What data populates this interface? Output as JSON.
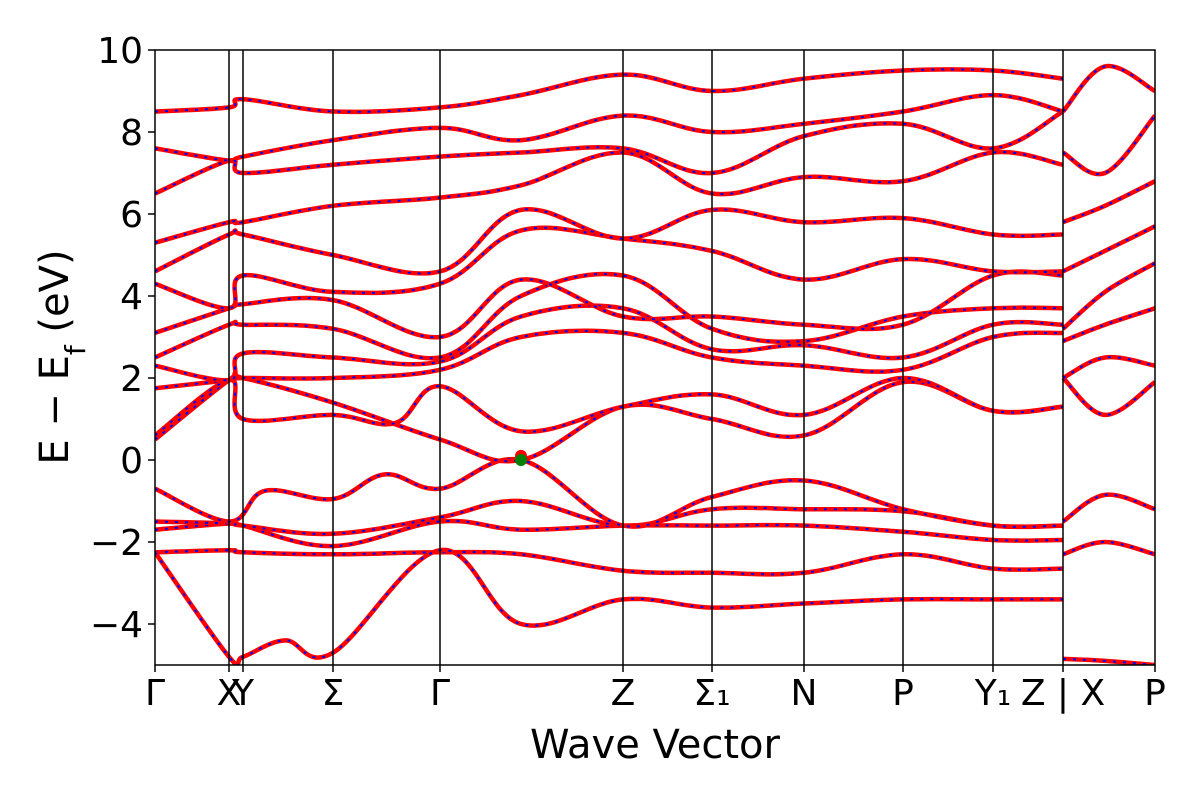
{
  "chart_data": {
    "type": "line",
    "title": "",
    "xlabel": "Wave Vector",
    "ylabel": "E − E_f (eV)",
    "ylabel_parts": [
      "E − E",
      "f",
      " (eV)"
    ],
    "ylim": [
      -5,
      10
    ],
    "xlim": [
      0,
      10
    ],
    "grid": false,
    "legend": "none",
    "y_ticks": [
      -4,
      -2,
      0,
      2,
      4,
      6,
      8,
      10
    ],
    "y_tick_labels": [
      "−4",
      "−2",
      "0",
      "2",
      "4",
      "6",
      "8",
      "10"
    ],
    "high_symmetry_points": [
      {
        "label": "Γ",
        "x": 0.0
      },
      {
        "label": "X",
        "x": 0.74
      },
      {
        "label": "Y",
        "x": 0.88
      },
      {
        "label": "Σ",
        "x": 1.78
      },
      {
        "label": "Γ",
        "x": 2.85
      },
      {
        "label": "Z",
        "x": 4.68
      },
      {
        "label": "Σ₁",
        "x": 5.57
      },
      {
        "label": "N",
        "x": 6.49
      },
      {
        "label": "P",
        "x": 7.48
      },
      {
        "label": "Y₁",
        "x": 8.38
      },
      {
        "label": "Z | X",
        "x": 9.08
      },
      {
        "label": "P",
        "x": 10.0
      }
    ],
    "series_colors": {
      "band": "#ff0000",
      "band_overlay": "#0000ff"
    },
    "markers": [
      {
        "x": 3.66,
        "y": 0.1,
        "color": "#ff0000"
      },
      {
        "x": 3.66,
        "y": 0.0,
        "color": "#008000"
      }
    ],
    "bands": [
      [
        [
          0,
          -2.25
        ],
        [
          0.74,
          -2.2
        ],
        [
          0.88,
          -2.25
        ],
        [
          1.78,
          -2.3
        ],
        [
          2.85,
          -2.25
        ],
        [
          3.66,
          -2.3
        ],
        [
          4.68,
          -2.7
        ],
        [
          5.57,
          -2.75
        ],
        [
          6.49,
          -2.75
        ],
        [
          7.48,
          -2.3
        ],
        [
          8.38,
          -2.65
        ],
        [
          9.08,
          -2.65
        ]
      ],
      [
        [
          0,
          -1.7
        ],
        [
          0.74,
          -1.55
        ],
        [
          0.88,
          -1.6
        ],
        [
          1.78,
          -2.1
        ],
        [
          2.85,
          -1.5
        ],
        [
          3.66,
          -1.7
        ],
        [
          4.68,
          -1.6
        ],
        [
          5.57,
          -1.6
        ],
        [
          6.49,
          -1.6
        ],
        [
          7.48,
          -1.75
        ],
        [
          8.38,
          -1.95
        ],
        [
          9.08,
          -1.95
        ]
      ],
      [
        [
          0,
          -1.5
        ],
        [
          0.74,
          -1.55
        ],
        [
          0.88,
          -1.6
        ],
        [
          1.78,
          -1.8
        ],
        [
          2.85,
          -1.4
        ],
        [
          3.66,
          -1.0
        ],
        [
          4.68,
          -1.6
        ],
        [
          5.57,
          -1.2
        ],
        [
          6.49,
          -1.2
        ],
        [
          7.48,
          -1.25
        ],
        [
          8.38,
          -1.6
        ],
        [
          9.08,
          -1.6
        ]
      ],
      [
        [
          0,
          -0.7
        ],
        [
          0.74,
          -1.5
        ],
        [
          1.1,
          -0.75
        ],
        [
          1.78,
          -0.95
        ],
        [
          2.3,
          -0.35
        ],
        [
          2.85,
          -0.7
        ],
        [
          3.66,
          0.0
        ],
        [
          4.68,
          -1.6
        ],
        [
          5.57,
          -0.9
        ],
        [
          6.49,
          -0.5
        ],
        [
          7.48,
          -1.2
        ],
        [
          8.38,
          -1.6
        ],
        [
          9.08,
          -1.6
        ]
      ],
      [
        [
          0,
          -2.25
        ],
        [
          0.74,
          -4.8
        ],
        [
          0.88,
          -4.8
        ],
        [
          1.3,
          -4.4
        ],
        [
          1.78,
          -4.7
        ],
        [
          2.85,
          -2.2
        ],
        [
          3.66,
          -4.0
        ],
        [
          4.68,
          -3.4
        ],
        [
          5.57,
          -3.6
        ],
        [
          6.49,
          -3.5
        ],
        [
          7.48,
          -3.4
        ],
        [
          8.38,
          -3.4
        ],
        [
          9.08,
          -3.4
        ]
      ],
      [
        [
          0,
          0.5
        ],
        [
          0.74,
          1.95
        ],
        [
          0.88,
          2.0
        ],
        [
          1.78,
          1.4
        ],
        [
          2.85,
          0.5
        ],
        [
          3.66,
          0.0
        ],
        [
          4.68,
          1.3
        ],
        [
          5.57,
          1.0
        ],
        [
          6.49,
          0.6
        ],
        [
          7.48,
          1.9
        ],
        [
          8.38,
          1.2
        ],
        [
          9.08,
          1.3
        ]
      ],
      [
        [
          0,
          0.6
        ],
        [
          0.74,
          1.95
        ],
        [
          0.88,
          1.0
        ],
        [
          1.78,
          1.1
        ],
        [
          2.4,
          0.9
        ],
        [
          2.85,
          1.8
        ],
        [
          3.66,
          0.7
        ],
        [
          4.68,
          1.3
        ],
        [
          5.57,
          1.6
        ],
        [
          6.49,
          1.1
        ],
        [
          7.48,
          2.0
        ],
        [
          8.38,
          1.2
        ],
        [
          9.08,
          1.3
        ]
      ],
      [
        [
          0,
          1.75
        ],
        [
          0.74,
          1.95
        ],
        [
          0.88,
          2.0
        ],
        [
          1.78,
          2.0
        ],
        [
          2.85,
          2.2
        ],
        [
          3.66,
          3.0
        ],
        [
          4.68,
          3.1
        ],
        [
          5.57,
          2.5
        ],
        [
          6.49,
          2.3
        ],
        [
          7.48,
          2.2
        ],
        [
          8.38,
          3.0
        ],
        [
          9.08,
          3.1
        ]
      ],
      [
        [
          0,
          2.3
        ],
        [
          0.74,
          1.95
        ],
        [
          0.88,
          2.6
        ],
        [
          1.78,
          2.5
        ],
        [
          2.85,
          2.4
        ],
        [
          3.66,
          3.5
        ],
        [
          4.68,
          3.7
        ],
        [
          5.57,
          2.7
        ],
        [
          6.49,
          2.8
        ],
        [
          7.48,
          2.5
        ],
        [
          8.38,
          3.3
        ],
        [
          9.08,
          3.3
        ]
      ],
      [
        [
          0,
          2.5
        ],
        [
          0.74,
          3.3
        ],
        [
          0.88,
          3.3
        ],
        [
          1.78,
          3.2
        ],
        [
          2.85,
          2.5
        ],
        [
          3.66,
          4.0
        ],
        [
          4.68,
          4.5
        ],
        [
          5.57,
          3.2
        ],
        [
          6.49,
          2.9
        ],
        [
          7.48,
          3.5
        ],
        [
          8.38,
          3.7
        ],
        [
          9.08,
          3.7
        ]
      ],
      [
        [
          0,
          3.1
        ],
        [
          0.74,
          3.7
        ],
        [
          0.88,
          3.8
        ],
        [
          1.78,
          3.9
        ],
        [
          2.85,
          3.0
        ],
        [
          3.66,
          4.4
        ],
        [
          4.68,
          3.5
        ],
        [
          5.57,
          3.5
        ],
        [
          6.49,
          3.3
        ],
        [
          7.48,
          3.3
        ],
        [
          8.38,
          4.5
        ],
        [
          9.08,
          4.5
        ]
      ],
      [
        [
          0,
          4.3
        ],
        [
          0.74,
          3.7
        ],
        [
          0.88,
          4.5
        ],
        [
          1.78,
          4.1
        ],
        [
          2.85,
          4.3
        ],
        [
          3.66,
          5.6
        ],
        [
          4.68,
          5.4
        ],
        [
          5.57,
          5.1
        ],
        [
          6.49,
          4.4
        ],
        [
          7.48,
          4.9
        ],
        [
          8.38,
          4.6
        ],
        [
          9.08,
          4.6
        ]
      ],
      [
        [
          0,
          4.6
        ],
        [
          0.74,
          5.5
        ],
        [
          0.88,
          5.5
        ],
        [
          1.78,
          5.0
        ],
        [
          2.85,
          4.6
        ],
        [
          3.66,
          6.1
        ],
        [
          4.68,
          5.4
        ],
        [
          5.57,
          6.1
        ],
        [
          6.49,
          5.8
        ],
        [
          7.48,
          5.9
        ],
        [
          8.38,
          5.5
        ],
        [
          9.08,
          5.5
        ]
      ],
      [
        [
          0,
          5.3
        ],
        [
          0.74,
          5.8
        ],
        [
          0.88,
          5.8
        ],
        [
          1.78,
          6.2
        ],
        [
          2.85,
          6.4
        ],
        [
          3.66,
          6.7
        ],
        [
          4.68,
          7.5
        ],
        [
          5.57,
          6.5
        ],
        [
          6.49,
          6.9
        ],
        [
          7.48,
          6.8
        ],
        [
          8.38,
          7.5
        ],
        [
          9.08,
          7.2
        ]
      ],
      [
        [
          0,
          6.5
        ],
        [
          0.74,
          7.3
        ],
        [
          0.88,
          7.0
        ],
        [
          1.78,
          7.2
        ],
        [
          2.85,
          7.4
        ],
        [
          3.66,
          7.5
        ],
        [
          4.68,
          7.6
        ],
        [
          5.57,
          7.0
        ],
        [
          6.49,
          7.9
        ],
        [
          7.48,
          8.2
        ],
        [
          8.38,
          7.6
        ],
        [
          9.08,
          8.5
        ]
      ],
      [
        [
          0,
          7.6
        ],
        [
          0.74,
          7.3
        ],
        [
          0.88,
          7.4
        ],
        [
          1.78,
          7.8
        ],
        [
          2.85,
          8.1
        ],
        [
          3.66,
          7.8
        ],
        [
          4.68,
          8.4
        ],
        [
          5.57,
          8.0
        ],
        [
          6.49,
          8.2
        ],
        [
          7.48,
          8.5
        ],
        [
          8.38,
          8.9
        ],
        [
          9.08,
          8.5
        ]
      ],
      [
        [
          0,
          8.5
        ],
        [
          0.74,
          8.6
        ],
        [
          0.88,
          8.8
        ],
        [
          1.78,
          8.5
        ],
        [
          2.85,
          8.6
        ],
        [
          3.66,
          8.9
        ],
        [
          4.68,
          9.4
        ],
        [
          5.57,
          9.0
        ],
        [
          6.49,
          9.3
        ],
        [
          7.48,
          9.5
        ],
        [
          8.38,
          9.5
        ],
        [
          9.08,
          9.3
        ]
      ],
      [
        [
          9.08,
          -4.85
        ],
        [
          9.5,
          -4.9
        ],
        [
          10,
          -5.0
        ]
      ],
      [
        [
          9.08,
          -2.3
        ],
        [
          9.5,
          -2.0
        ],
        [
          10,
          -2.3
        ]
      ],
      [
        [
          9.08,
          -1.5
        ],
        [
          9.5,
          -0.85
        ],
        [
          10,
          -1.2
        ]
      ],
      [
        [
          9.08,
          2.0
        ],
        [
          9.5,
          1.1
        ],
        [
          10,
          1.9
        ]
      ],
      [
        [
          9.08,
          2.0
        ],
        [
          9.5,
          2.5
        ],
        [
          10,
          2.3
        ]
      ],
      [
        [
          9.08,
          2.9
        ],
        [
          9.5,
          3.3
        ],
        [
          10,
          3.7
        ]
      ],
      [
        [
          9.08,
          3.2
        ],
        [
          9.5,
          4.1
        ],
        [
          10,
          4.8
        ]
      ],
      [
        [
          9.08,
          4.6
        ],
        [
          9.5,
          5.1
        ],
        [
          10,
          5.7
        ]
      ],
      [
        [
          9.08,
          5.8
        ],
        [
          9.5,
          6.2
        ],
        [
          10,
          6.8
        ]
      ],
      [
        [
          9.08,
          7.5
        ],
        [
          9.5,
          7.0
        ],
        [
          10,
          8.4
        ]
      ],
      [
        [
          9.08,
          8.5
        ],
        [
          9.5,
          9.6
        ],
        [
          10,
          9.0
        ]
      ]
    ]
  }
}
